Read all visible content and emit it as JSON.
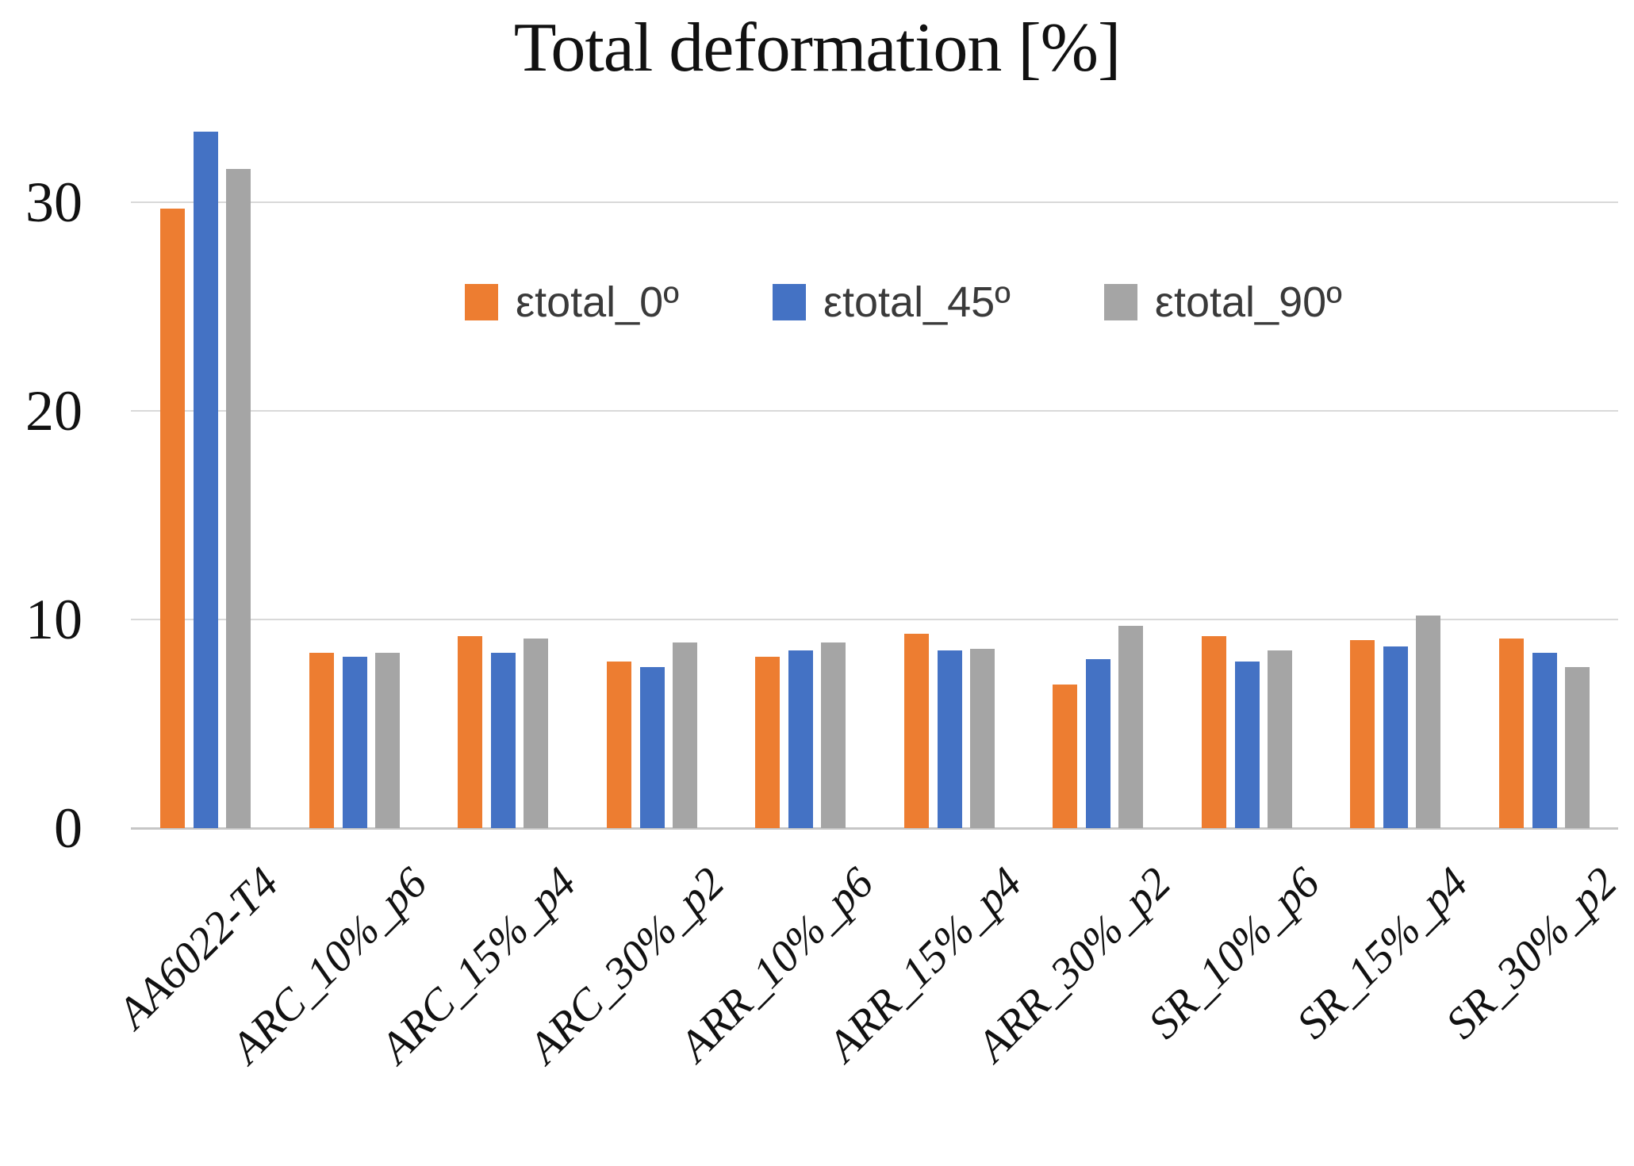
{
  "chart_data": {
    "type": "bar",
    "title": "Total deformation [%]",
    "categories": [
      "AA6022-T4",
      "ARC_10%_p6",
      "ARC_15%_p4",
      "ARC_30%_p2",
      "ARR_10%_p6",
      "ARR_15%_p4",
      "ARR_30%_p2",
      "SR_10%_p6",
      "SR_15%_p4",
      "SR_30%_p2"
    ],
    "series": [
      {
        "name": "εtotal_0º",
        "color": "#ED7D31",
        "values": [
          29.7,
          8.4,
          9.2,
          8.0,
          8.2,
          9.3,
          6.9,
          9.2,
          9.0,
          9.1
        ]
      },
      {
        "name": "εtotal_45º",
        "color": "#4472C4",
        "values": [
          33.4,
          8.2,
          8.4,
          7.7,
          8.5,
          8.5,
          8.1,
          8.0,
          8.7,
          8.4
        ]
      },
      {
        "name": "εtotal_90º",
        "color": "#A5A5A5",
        "values": [
          31.6,
          8.4,
          9.1,
          8.9,
          8.9,
          8.6,
          9.7,
          8.5,
          10.2,
          7.7
        ]
      }
    ],
    "y_ticks": [
      0,
      10,
      20,
      30
    ],
    "ylim": [
      0,
      35
    ],
    "xlabel": "",
    "ylabel": "",
    "grid": true,
    "legend_position": "inside-top",
    "colors": {
      "gridline": "#D9D9D9",
      "axis_line": "#C6C6C6",
      "title_text": "#111111",
      "legend_text": "#3A3A3A",
      "background": "#FFFFFF"
    }
  }
}
